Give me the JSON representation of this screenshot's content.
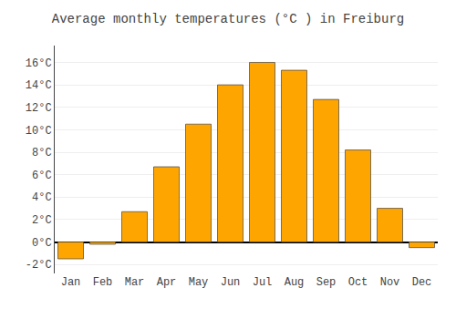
{
  "chart_data": {
    "type": "bar",
    "title": "Average monthly temperatures (°C ) in Freiburg",
    "categories": [
      "Jan",
      "Feb",
      "Mar",
      "Apr",
      "May",
      "Jun",
      "Jul",
      "Aug",
      "Sep",
      "Oct",
      "Nov",
      "Dec"
    ],
    "values": [
      -1.5,
      -0.2,
      2.7,
      6.7,
      10.5,
      14.0,
      16.0,
      15.3,
      12.7,
      8.2,
      3.0,
      -0.5
    ],
    "color": "#FFA500",
    "ylim": [
      -2.8,
      17.5
    ],
    "yticks": [
      {
        "value": -2,
        "label": "-2°C"
      },
      {
        "value": 0,
        "label": "0°C"
      },
      {
        "value": 2,
        "label": "2°C"
      },
      {
        "value": 4,
        "label": "4°C"
      },
      {
        "value": 6,
        "label": "6°C"
      },
      {
        "value": 8,
        "label": "8°C"
      },
      {
        "value": 10,
        "label": "10°C"
      },
      {
        "value": 12,
        "label": "12°C"
      },
      {
        "value": 14,
        "label": "14°C"
      },
      {
        "value": 16,
        "label": "16°C"
      }
    ],
    "grid": true
  }
}
